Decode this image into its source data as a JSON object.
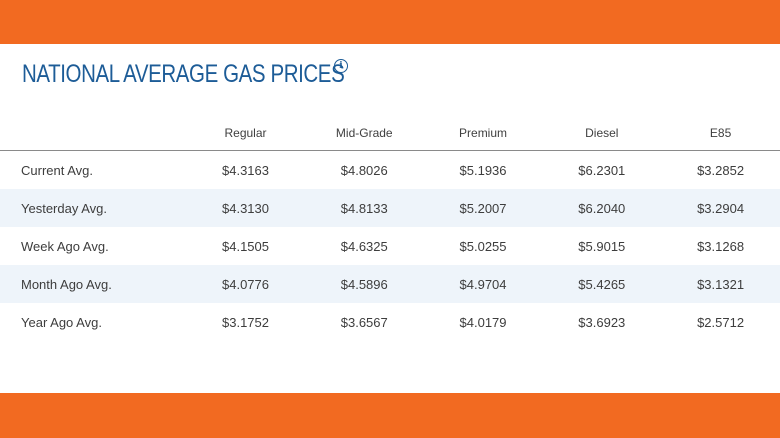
{
  "title": "NATIONAL AVERAGE GAS PRICES",
  "info_icon": "info-circle-icon",
  "colors": {
    "accent_orange": "#f26a21",
    "title_blue": "#1d5c97",
    "alt_row": "#eef4fa"
  },
  "table": {
    "columns": [
      "",
      "Regular",
      "Mid-Grade",
      "Premium",
      "Diesel",
      "E85"
    ],
    "rows": [
      {
        "label": "Current Avg.",
        "values": [
          "$4.3163",
          "$4.8026",
          "$5.1936",
          "$6.2301",
          "$3.2852"
        ]
      },
      {
        "label": "Yesterday Avg.",
        "values": [
          "$4.3130",
          "$4.8133",
          "$5.2007",
          "$6.2040",
          "$3.2904"
        ]
      },
      {
        "label": "Week Ago Avg.",
        "values": [
          "$4.1505",
          "$4.6325",
          "$5.0255",
          "$5.9015",
          "$3.1268"
        ]
      },
      {
        "label": "Month Ago Avg.",
        "values": [
          "$4.0776",
          "$4.5896",
          "$4.9704",
          "$5.4265",
          "$3.1321"
        ]
      },
      {
        "label": "Year Ago Avg.",
        "values": [
          "$3.1752",
          "$3.6567",
          "$4.0179",
          "$3.6923",
          "$2.5712"
        ]
      }
    ]
  }
}
